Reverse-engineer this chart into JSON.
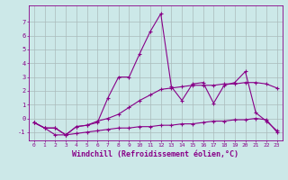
{
  "bg_color": "#cce8e8",
  "line_color": "#880088",
  "grid_color": "#aabbbb",
  "xlabel": "Windchill (Refroidissement éolien,°C)",
  "xlabel_fontsize": 6.0,
  "ylim": [
    -1.6,
    8.2
  ],
  "xlim": [
    -0.5,
    23.5
  ],
  "line1_y": [
    -0.3,
    -0.7,
    -0.7,
    -1.2,
    -0.6,
    -0.5,
    -0.3,
    1.5,
    3.0,
    3.0,
    4.7,
    6.3,
    7.6,
    2.3,
    1.3,
    2.5,
    2.6,
    1.1,
    2.4,
    2.6,
    3.4,
    0.4,
    -0.2,
    -0.9
  ],
  "line2_y": [
    -0.3,
    -0.7,
    -0.7,
    -1.2,
    -0.6,
    -0.5,
    -0.2,
    0.0,
    0.3,
    0.8,
    1.3,
    1.7,
    2.1,
    2.2,
    2.3,
    2.4,
    2.4,
    2.4,
    2.5,
    2.5,
    2.6,
    2.6,
    2.5,
    2.2
  ],
  "line3_y": [
    -0.3,
    -0.7,
    -1.2,
    -1.2,
    -1.1,
    -1.0,
    -0.9,
    -0.8,
    -0.7,
    -0.7,
    -0.6,
    -0.6,
    -0.5,
    -0.5,
    -0.4,
    -0.4,
    -0.3,
    -0.2,
    -0.2,
    -0.1,
    -0.1,
    0.0,
    -0.1,
    -1.0
  ],
  "marker": "+",
  "markersize": 3,
  "linewidth": 0.8
}
